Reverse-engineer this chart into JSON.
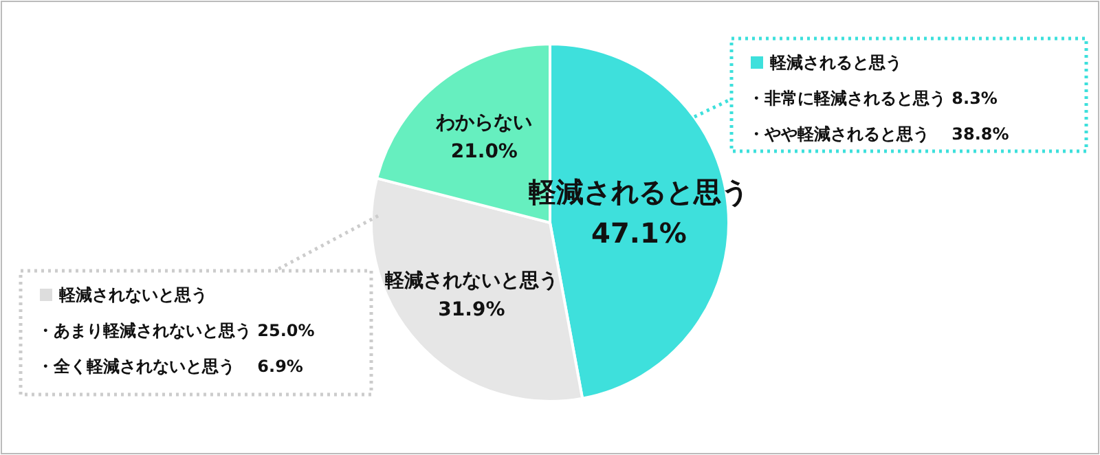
{
  "chart_data": {
    "type": "pie",
    "categories": [
      "軽減されると思う",
      "軽減されないと思う",
      "わからない"
    ],
    "values": [
      47.1,
      31.9,
      21.0
    ],
    "colors": [
      "#3ee0dc",
      "#e6e6e6",
      "#66efbf"
    ],
    "value_labels": [
      "47.1%",
      "31.9%",
      "21.0%"
    ],
    "annotations": [
      "軽減されると思う",
      "・非常に軽減されると思う 8.3%",
      "・やや軽減されると思う　 38.8%",
      "軽減されないと思う",
      "・あまり軽減されないと思う 25.0%",
      "・全く軽減されないと思う　 6.9%"
    ]
  }
}
